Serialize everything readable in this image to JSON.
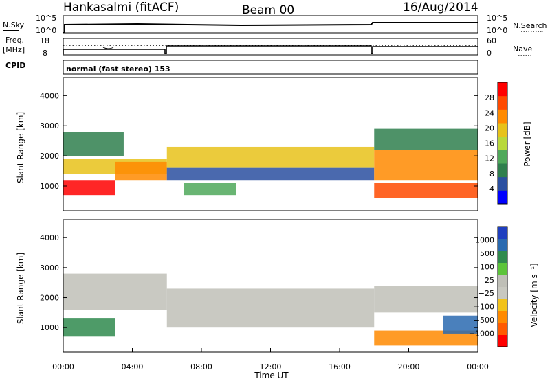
{
  "header": {
    "station": "Hankasalmi (fitACF)",
    "beam": "Beam 00",
    "date": "16/Aug/2014"
  },
  "noise_panel": {
    "left_label": "N.Sky",
    "right_label": "N.Search",
    "left_ticks": [
      "10^5",
      "10^0"
    ],
    "right_ticks": [
      "10^5",
      "10^0"
    ]
  },
  "freq_panel": {
    "left_label_1": "Freq.",
    "left_label_2": "[MHz]",
    "left_ticks": [
      "18",
      "8"
    ],
    "right_ticks": [
      "60",
      "0"
    ],
    "right_label": "Nave",
    "cpid_label": "CPID"
  },
  "cpid_panel": {
    "text": "normal (fast stereo) 153"
  },
  "colors": {
    "power_scale": [
      "#0000ff",
      "#2a4fa0",
      "#2f7f4d",
      "#4fa85a",
      "#b8d83a",
      "#e7c21a",
      "#ff8a00",
      "#ff4a00",
      "#ff0000"
    ],
    "velocity_scale": [
      "#1f3fbf",
      "#2a6ab0",
      "#2f8a4d",
      "#5cc43a",
      "#bfbfb7",
      "#c8c8c0",
      "#f2c21a",
      "#ff8a00",
      "#ff5a00",
      "#ff0000"
    ],
    "ground_scatter": "#bfbfb7"
  },
  "chart_data": [
    {
      "type": "heatmap",
      "title": "",
      "xlabel": "",
      "ylabel": "Slant Range [km]",
      "xlim": [
        0,
        24
      ],
      "ylim": [
        180,
        4600
      ],
      "yticks": [
        "4000",
        "3000",
        "2000",
        "1000"
      ],
      "colorbar": {
        "label": "Power [dB]",
        "ticks": [
          "28",
          "24",
          "20",
          "16",
          "12",
          "8",
          "4"
        ],
        "range": [
          0,
          32
        ]
      },
      "layers": [
        {
          "t": [
            0,
            3
          ],
          "r": [
            700,
            1200
          ],
          "level": 30
        },
        {
          "t": [
            0,
            6
          ],
          "r": [
            1400,
            1900
          ],
          "level": 20
        },
        {
          "t": [
            0,
            3.5
          ],
          "r": [
            2000,
            2800
          ],
          "level": 10
        },
        {
          "t": [
            3,
            6
          ],
          "r": [
            1200,
            1800
          ],
          "level": 22
        },
        {
          "t": [
            6,
            18
          ],
          "r": [
            1600,
            2300
          ],
          "level": 18
        },
        {
          "t": [
            6,
            18
          ],
          "r": [
            1200,
            1600
          ],
          "level": 6
        },
        {
          "t": [
            7,
            10
          ],
          "r": [
            700,
            1100
          ],
          "level": 14
        },
        {
          "t": [
            18,
            24
          ],
          "r": [
            1200,
            2200
          ],
          "level": 24
        },
        {
          "t": [
            18,
            24
          ],
          "r": [
            600,
            1100
          ],
          "level": 28
        },
        {
          "t": [
            18,
            24
          ],
          "r": [
            2200,
            2900
          ],
          "level": 10
        }
      ]
    },
    {
      "type": "heatmap",
      "title": "",
      "xlabel": "Time UT",
      "ylabel": "Slant Range [km]",
      "xlim": [
        0,
        24
      ],
      "ylim": [
        180,
        4600
      ],
      "xticks": [
        "00:00",
        "04:00",
        "08:00",
        "12:00",
        "16:00",
        "20:00",
        "00:00"
      ],
      "yticks": [
        "4000",
        "3000",
        "2000",
        "1000"
      ],
      "colorbar": {
        "label": "Velocity [m s⁻¹]",
        "ticks": [
          "1000",
          "500",
          "100",
          "25",
          "−25",
          "−100",
          "−500",
          "−1000"
        ]
      },
      "layers": [
        {
          "t": [
            0,
            6
          ],
          "r": [
            1600,
            2800
          ],
          "velocity": 0
        },
        {
          "t": [
            6,
            18
          ],
          "r": [
            1000,
            2300
          ],
          "velocity": 0
        },
        {
          "t": [
            0,
            3
          ],
          "r": [
            700,
            1300
          ],
          "velocity": 200
        },
        {
          "t": [
            18,
            24
          ],
          "r": [
            1500,
            2400
          ],
          "velocity": 0
        },
        {
          "t": [
            18,
            24
          ],
          "r": [
            400,
            900
          ],
          "velocity": -300
        },
        {
          "t": [
            22,
            24
          ],
          "r": [
            800,
            1400
          ],
          "velocity": 600
        }
      ]
    }
  ]
}
